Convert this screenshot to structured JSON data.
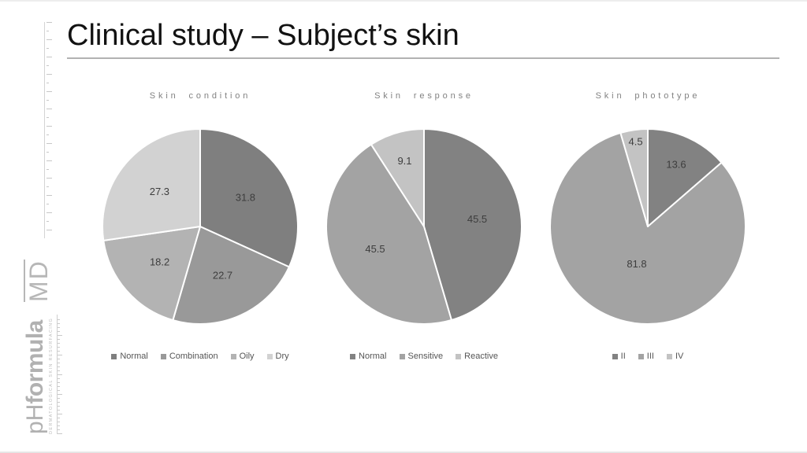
{
  "slide": {
    "title": "Clinical study – Subject’s skin"
  },
  "logo": {
    "ph": "pH",
    "formula": "formula",
    "tagline": "DERMATOLOGICAL SKIN RESURFACING",
    "md": "MD"
  },
  "chart_data": [
    {
      "type": "pie",
      "title": "Skin condition",
      "labels": [
        "Normal",
        "Combination",
        "Oily",
        "Dry"
      ],
      "values": [
        31.8,
        22.7,
        18.2,
        27.3
      ],
      "colors": [
        "#7f7f7f",
        "#999999",
        "#b3b3b3",
        "#d2d2d2"
      ],
      "start_angle_deg": 0,
      "direction": "clockwise",
      "legend_position": "bottom",
      "value_label_color": "#3d3d3d"
    },
    {
      "type": "pie",
      "title": "Skin response",
      "labels": [
        "Normal",
        "Sensitive",
        "Reactive"
      ],
      "values": [
        45.5,
        45.5,
        9.1
      ],
      "colors": [
        "#828282",
        "#a3a3a3",
        "#c3c3c3"
      ],
      "start_angle_deg": 0,
      "direction": "clockwise",
      "legend_position": "bottom",
      "value_label_color": "#3d3d3d"
    },
    {
      "type": "pie",
      "title": "Skin phototype",
      "labels": [
        "II",
        "III",
        "IV"
      ],
      "values": [
        13.6,
        81.8,
        4.5
      ],
      "colors": [
        "#828282",
        "#a3a3a3",
        "#c3c3c3"
      ],
      "start_angle_deg": 0,
      "direction": "clockwise",
      "legend_position": "bottom",
      "value_label_color": "#3d3d3d"
    }
  ]
}
